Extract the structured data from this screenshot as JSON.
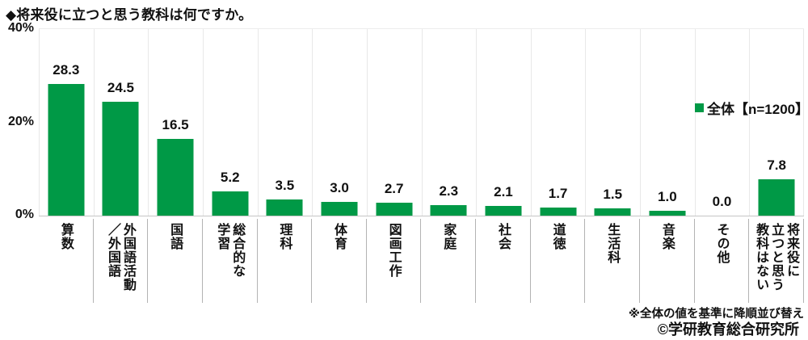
{
  "title": "◆将来役に立つと思う教科は何ですか。",
  "legend": {
    "label": "全体【n=1200】",
    "swatch_color": "#009946"
  },
  "y_axis": {
    "ticks": [
      "40%",
      "20%",
      "0%"
    ]
  },
  "footer": {
    "note": "※全体の値を基準に降順並び替え",
    "credit": "©学研教育総合研究所"
  },
  "colors": {
    "bar": "#009946",
    "gridline": "#e8e8e8",
    "separator": "#b3b3b3"
  },
  "chart_data": {
    "type": "bar",
    "title": "将来役に立つと思う教科は何ですか。",
    "categories": [
      "算数",
      "外国語活動\n／外国語",
      "国語",
      "総合的な\n学習",
      "理科",
      "体育",
      "図画工作",
      "家庭",
      "社会",
      "道徳",
      "生活科",
      "音楽",
      "その他",
      "将来役に\n立つと思う\n教科はない"
    ],
    "values": [
      28.3,
      24.5,
      16.5,
      5.2,
      3.5,
      3.0,
      2.7,
      2.3,
      2.1,
      1.7,
      1.5,
      1.0,
      0.0,
      7.8
    ],
    "value_label_format": "one-decimal",
    "xlabel": "",
    "ylabel": "%",
    "ylim": [
      0,
      40
    ],
    "yticks": [
      0,
      20,
      40
    ],
    "legend": "全体【n=1200】",
    "legend_position": "right-inside",
    "grid": "vertical category separators only",
    "sort_note": "sorted descending by overall value"
  }
}
